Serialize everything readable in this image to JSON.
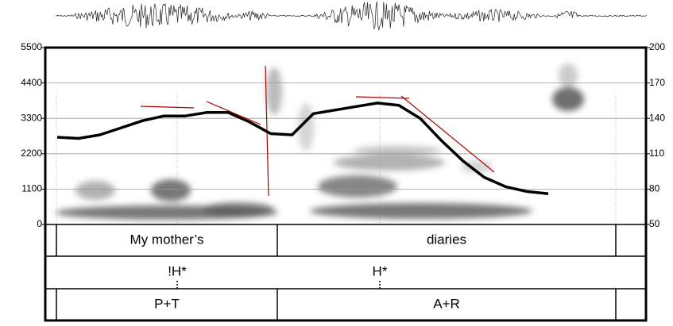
{
  "chart_data": {
    "type": "line",
    "categories": [
      null,
      null,
      null,
      null,
      null,
      null,
      null,
      null,
      null,
      null,
      null,
      null,
      null,
      null,
      null,
      null,
      null,
      null,
      null,
      null,
      null,
      null,
      null,
      null
    ],
    "series": [
      {
        "color": "#000000",
        "axis": "y2",
        "values": [
          124,
          123,
          126,
          132,
          138,
          142,
          142,
          145,
          145,
          137,
          127,
          126,
          144,
          147,
          150,
          153,
          151,
          140,
          121,
          104,
          90,
          82,
          78,
          76
        ]
      }
    ],
    "ylim": [
      0,
      5500
    ],
    "yticks": [
      0,
      1100,
      2200,
      3300,
      4400,
      5500
    ],
    "y2lim": [
      50,
      200
    ],
    "y2ticks": [
      50,
      80,
      110,
      140,
      170,
      200
    ],
    "grid": true,
    "tiers": [
      {
        "labels": [
          "My mother’s",
          "diaries"
        ]
      },
      {
        "labels": [
          "!H*",
          "H*"
        ]
      },
      {
        "labels": [
          "P+T",
          "A+R"
        ]
      }
    ]
  }
}
